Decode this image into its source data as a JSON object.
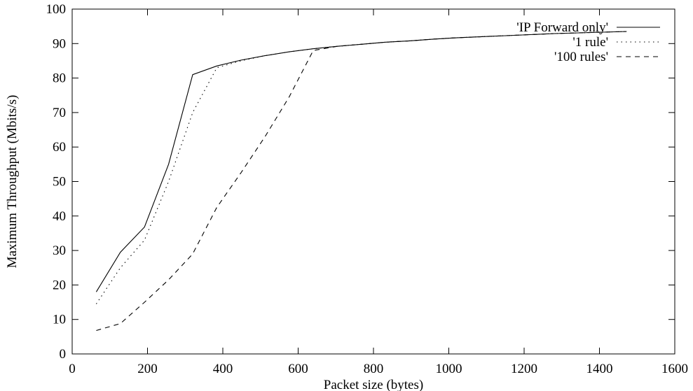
{
  "chart_data": {
    "type": "line",
    "title": "",
    "xlabel": "Packet size (bytes)",
    "ylabel": "Maximum Throughput (Mbits/s)",
    "xlim": [
      0,
      1600
    ],
    "ylim": [
      0,
      100
    ],
    "xticks": [
      "0",
      "200",
      "400",
      "600",
      "800",
      "1000",
      "1200",
      "1400",
      "1600"
    ],
    "yticks": [
      "0",
      "10",
      "20",
      "30",
      "40",
      "50",
      "60",
      "70",
      "80",
      "90",
      "100"
    ],
    "grid": false,
    "legend_position": "top-right",
    "series": [
      {
        "name": "'IP Forward only'",
        "style": "solid",
        "x": [
          64,
          128,
          192,
          256,
          320,
          384,
          448,
          512,
          576,
          640,
          704,
          768,
          832,
          896,
          960,
          1024,
          1088,
          1152,
          1216,
          1280,
          1344,
          1408,
          1472
        ],
        "y": [
          18,
          29.5,
          36.8,
          55,
          81,
          83.5,
          85.2,
          86.5,
          87.6,
          88.5,
          89.2,
          89.8,
          90.4,
          90.8,
          91.3,
          91.7,
          92.0,
          92.3,
          92.6,
          92.9,
          93.1,
          93.3,
          93.5
        ]
      },
      {
        "name": "'1 rule'",
        "style": "dotted",
        "x": [
          64,
          128,
          192,
          256,
          320,
          384,
          448,
          512,
          576,
          640,
          704,
          768,
          832,
          896,
          960,
          1024,
          1088,
          1152,
          1216,
          1280,
          1344,
          1408,
          1472
        ],
        "y": [
          14.5,
          25,
          33,
          50,
          70,
          83,
          85,
          86.5,
          87.6,
          88.5,
          89.2,
          89.8,
          90.4,
          90.8,
          91.3,
          91.7,
          92.0,
          92.3,
          92.6,
          92.9,
          93.1,
          93.3,
          93.5
        ]
      },
      {
        "name": "'100 rules'",
        "style": "dashed",
        "x": [
          64,
          128,
          192,
          256,
          320,
          384,
          448,
          512,
          576,
          640,
          704,
          768,
          832,
          896,
          960,
          1024,
          1088,
          1152,
          1216,
          1280,
          1344,
          1408,
          1472
        ],
        "y": [
          6.8,
          8.8,
          15,
          21.5,
          29,
          42.5,
          52.5,
          63,
          74.5,
          88,
          89.2,
          89.8,
          90.4,
          90.8,
          91.3,
          91.7,
          92.0,
          92.3,
          92.6,
          92.9,
          93.1,
          93.3,
          93.5
        ]
      }
    ]
  }
}
